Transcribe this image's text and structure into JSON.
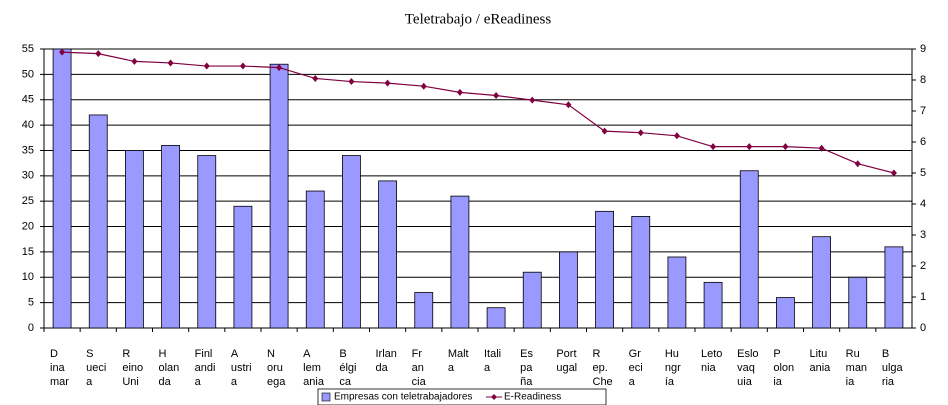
{
  "chart_data": {
    "type": "bar",
    "title": "Teletrabajo / eReadiness",
    "categories": [
      "D\nina\nmar",
      "S\nueci\na",
      "R\neino\nUni",
      "H\nolan\nda",
      "Finl\nandi\na",
      "A\nustri\na",
      "N\noru\nega",
      "A\nlem\nania",
      "B\nélgi\nca",
      "Irlan\nda",
      "Fr\nan\ncia",
      "Malt\na",
      "Itali\na",
      "Es\npa\nña",
      "Port\nugal",
      "R\nep.\nChe",
      "Gr\neci\na",
      "Hu\nngr\nía",
      "Leto\nnia",
      "Eslo\nvaq\nuia",
      "P\nolon\nia",
      "Litu\nania",
      "Ru\nman\nia",
      "B\nulga\nria"
    ],
    "series": [
      {
        "name": "Empresas con teletrabajadores",
        "color": "#9999ff",
        "type": "bar",
        "values": [
          55,
          42,
          35,
          36,
          34,
          24,
          52,
          27,
          34,
          29,
          7,
          26,
          4,
          11,
          15,
          23,
          22,
          14,
          9,
          31,
          6,
          18,
          10,
          16
        ]
      },
      {
        "name": "E-Readiness",
        "color": "#800040",
        "type": "line",
        "axis": "y2",
        "values": [
          8.9,
          8.85,
          8.6,
          8.55,
          8.45,
          8.45,
          8.4,
          8.05,
          7.95,
          7.9,
          7.8,
          7.6,
          7.5,
          7.35,
          7.2,
          6.35,
          6.3,
          6.2,
          5.85,
          5.85,
          5.85,
          5.8,
          5.3,
          5.0
        ]
      }
    ],
    "ylim": [
      0,
      55
    ],
    "yticks": [
      0,
      5,
      10,
      15,
      20,
      25,
      30,
      35,
      40,
      45,
      50,
      55
    ],
    "y2lim": [
      0,
      9
    ],
    "y2ticks": [
      0,
      1,
      2,
      3,
      4,
      5,
      6,
      7,
      8,
      9
    ],
    "grid": true
  }
}
